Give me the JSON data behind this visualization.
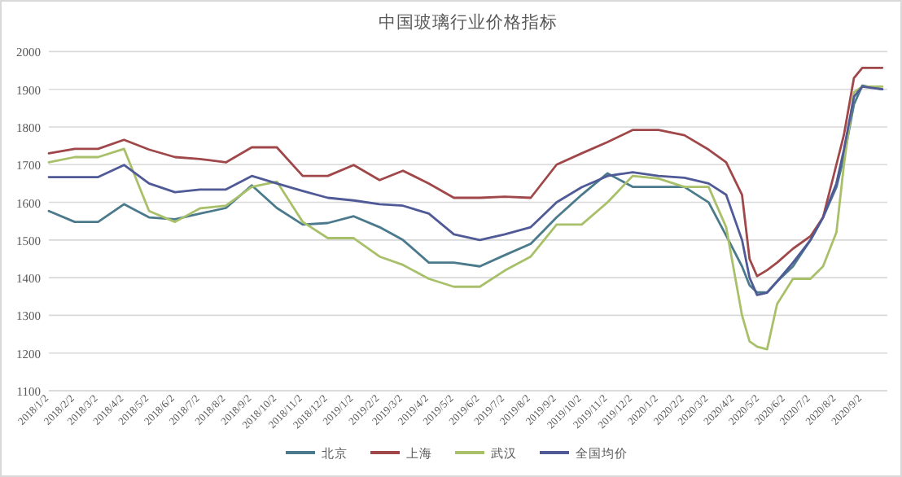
{
  "chart_data": {
    "type": "line",
    "title": "中国玻璃行业价格指标",
    "x": [
      "2018-01-02",
      "2018-02-02",
      "2018-03-02",
      "2018-04-02",
      "2018-05-02",
      "2018-06-02",
      "2018-07-02",
      "2018-08-02",
      "2018-09-02",
      "2018-10-02",
      "2018-11-02",
      "2018-12-02",
      "2019-01-02",
      "2019-02-02",
      "2019-03-02",
      "2019-04-02",
      "2019-05-02",
      "2019-06-02",
      "2019-07-02",
      "2019-08-02",
      "2019-09-02",
      "2019-10-02",
      "2019-11-02",
      "2019-12-02",
      "2020-01-02",
      "2020-02-02",
      "2020-03-02",
      "2020-03-23",
      "2020-04-11",
      "2020-04-20",
      "2020-04-29",
      "2020-05-11",
      "2020-05-23",
      "2020-06-11",
      "2020-07-02",
      "2020-07-17",
      "2020-08-02",
      "2020-08-11",
      "2020-08-23",
      "2020-09-02",
      "2020-09-26"
    ],
    "series": [
      {
        "name": "北京",
        "color": "#4a7a8c",
        "values": [
          1577,
          1548,
          1548,
          1595,
          1560,
          1555,
          1570,
          1585,
          1645,
          1585,
          1541,
          1545,
          1563,
          1534,
          1500,
          1440,
          1440,
          1430,
          1460,
          1490,
          1560,
          1620,
          1677,
          1641,
          1641,
          1641,
          1600,
          1512,
          1430,
          1380,
          1361,
          1361,
          1390,
          1430,
          1500,
          1560,
          1640,
          1720,
          1860,
          1910,
          1900
        ]
      },
      {
        "name": "上海",
        "color": "#a0474a",
        "values": [
          1730,
          1742,
          1742,
          1766,
          1740,
          1720,
          1715,
          1706,
          1746,
          1746,
          1670,
          1670,
          1699,
          1659,
          1684,
          1650,
          1612,
          1612,
          1615,
          1612,
          1700,
          1730,
          1760,
          1792,
          1792,
          1778,
          1740,
          1706,
          1620,
          1450,
          1404,
          1420,
          1440,
          1477,
          1510,
          1560,
          1700,
          1779,
          1930,
          1957,
          1957
        ]
      },
      {
        "name": "武汉",
        "color": "#a9c06a",
        "values": [
          1706,
          1720,
          1720,
          1742,
          1577,
          1548,
          1584,
          1591,
          1641,
          1655,
          1548,
          1505,
          1505,
          1456,
          1434,
          1397,
          1376,
          1376,
          1419,
          1456,
          1541,
          1541,
          1600,
          1670,
          1663,
          1641,
          1641,
          1534,
          1300,
          1231,
          1217,
          1210,
          1330,
          1397,
          1397,
          1430,
          1520,
          1700,
          1892,
          1907,
          1907
        ]
      },
      {
        "name": "全国均价",
        "color": "#4f5a96",
        "values": [
          1667,
          1667,
          1667,
          1699,
          1650,
          1627,
          1634,
          1634,
          1670,
          1650,
          1630,
          1612,
          1605,
          1595,
          1591,
          1570,
          1515,
          1500,
          1515,
          1534,
          1600,
          1640,
          1670,
          1680,
          1670,
          1665,
          1650,
          1620,
          1500,
          1400,
          1354,
          1360,
          1390,
          1440,
          1500,
          1560,
          1650,
          1740,
          1880,
          1907,
          1900
        ]
      }
    ],
    "xlim": [
      "2018-01-02",
      "2020-10-02"
    ],
    "xticks": [
      {
        "value": "2018-01-02",
        "label": "2018/1/2"
      },
      {
        "value": "2018-02-02",
        "label": "2018/2/2"
      },
      {
        "value": "2018-03-02",
        "label": "2018/3/2"
      },
      {
        "value": "2018-04-02",
        "label": "2018/4/2"
      },
      {
        "value": "2018-05-02",
        "label": "2018/5/2"
      },
      {
        "value": "2018-06-02",
        "label": "2018/6/2"
      },
      {
        "value": "2018-07-02",
        "label": "2018/7/2"
      },
      {
        "value": "2018-08-02",
        "label": "2018/8/2"
      },
      {
        "value": "2018-09-02",
        "label": "2018/9/2"
      },
      {
        "value": "2018-10-02",
        "label": "2018/10/2"
      },
      {
        "value": "2018-11-02",
        "label": "2018/11/2"
      },
      {
        "value": "2018-12-02",
        "label": "2018/12/2"
      },
      {
        "value": "2019-01-02",
        "label": "2019/1/2"
      },
      {
        "value": "2019-02-02",
        "label": "2019/2/2"
      },
      {
        "value": "2019-03-02",
        "label": "2019/3/2"
      },
      {
        "value": "2019-04-02",
        "label": "2019/4/2"
      },
      {
        "value": "2019-05-02",
        "label": "2019/5/2"
      },
      {
        "value": "2019-06-02",
        "label": "2019/6/2"
      },
      {
        "value": "2019-07-02",
        "label": "2019/7/2"
      },
      {
        "value": "2019-08-02",
        "label": "2019/8/2"
      },
      {
        "value": "2019-09-02",
        "label": "2019/9/2"
      },
      {
        "value": "2019-10-02",
        "label": "2019/10/2"
      },
      {
        "value": "2019-11-02",
        "label": "2019/11/2"
      },
      {
        "value": "2019-12-02",
        "label": "2019/12/2"
      },
      {
        "value": "2020-01-02",
        "label": "2020/1/2"
      },
      {
        "value": "2020-02-02",
        "label": "2020/2/2"
      },
      {
        "value": "2020-03-02",
        "label": "2020/3/2"
      },
      {
        "value": "2020-04-02",
        "label": "2020/4/2"
      },
      {
        "value": "2020-05-02",
        "label": "2020/5/2"
      },
      {
        "value": "2020-06-02",
        "label": "2020/6/2"
      },
      {
        "value": "2020-07-02",
        "label": "2020/7/2"
      },
      {
        "value": "2020-08-02",
        "label": "2020/8/2"
      },
      {
        "value": "2020-09-02",
        "label": "2020/9/2"
      }
    ],
    "ylim": [
      1100,
      2000
    ],
    "yticks": [
      1100,
      1200,
      1300,
      1400,
      1500,
      1600,
      1700,
      1800,
      1900,
      2000
    ],
    "grid": "y",
    "legend": "bottom",
    "marker": "none",
    "line_style": "solid"
  }
}
